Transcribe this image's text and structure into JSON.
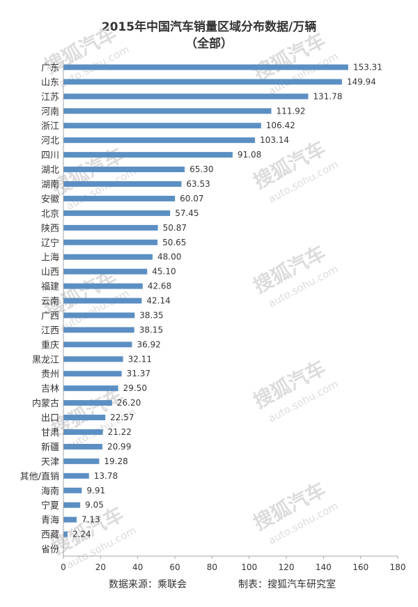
{
  "chart_data": {
    "type": "bar",
    "orientation": "horizontal",
    "title": "2015年中国汽车销量区域分布数据/万辆",
    "subtitle": "（全部）",
    "categories": [
      "广东",
      "山东",
      "江苏",
      "河南",
      "浙江",
      "河北",
      "四川",
      "湖北",
      "湖南",
      "安徽",
      "北京",
      "陕西",
      "辽宁",
      "上海",
      "山西",
      "福建",
      "云南",
      "广西",
      "江西",
      "重庆",
      "黑龙江",
      "贵州",
      "吉林",
      "内蒙古",
      "出口",
      "甘肃",
      "新疆",
      "天津",
      "其他/直销",
      "海南",
      "宁夏",
      "青海",
      "西藏",
      "省份"
    ],
    "values": [
      153.31,
      149.94,
      131.78,
      111.92,
      106.42,
      103.14,
      91.08,
      65.3,
      63.53,
      60.07,
      57.45,
      50.87,
      50.65,
      48.0,
      45.1,
      42.68,
      42.14,
      38.35,
      38.15,
      36.92,
      32.11,
      31.37,
      29.5,
      26.2,
      22.57,
      21.22,
      20.99,
      19.28,
      13.78,
      9.91,
      9.05,
      7.13,
      2.24,
      null
    ],
    "value_labels": [
      "153.31",
      "149.94",
      "131.78",
      "111.92",
      "106.42",
      "103.14",
      "91.08",
      "65.30",
      "63.53",
      "60.07",
      "57.45",
      "50.87",
      "50.65",
      "48.00",
      "45.10",
      "42.68",
      "42.14",
      "38.35",
      "38.15",
      "36.92",
      "32.11",
      "31.37",
      "29.50",
      "26.20",
      "22.57",
      "21.22",
      "20.99",
      "19.28",
      "13.78",
      "9.91",
      "9.05",
      "7.13",
      "2.24",
      ""
    ],
    "xlim": [
      0,
      180
    ],
    "x_ticks": [
      "0",
      "20",
      "40",
      "60",
      "80",
      "100",
      "120",
      "140",
      "160",
      "180"
    ],
    "grid": false,
    "bar_color": "#5b8fc3",
    "axis_color": "#a6a6a6"
  },
  "footer": {
    "source": "数据来源：乘联会",
    "credit": "制表：搜狐汽车研究室"
  },
  "watermark": {
    "brand": "搜狐汽车",
    "url": "auto.sohu.com",
    "color": "#d9d9d9"
  }
}
